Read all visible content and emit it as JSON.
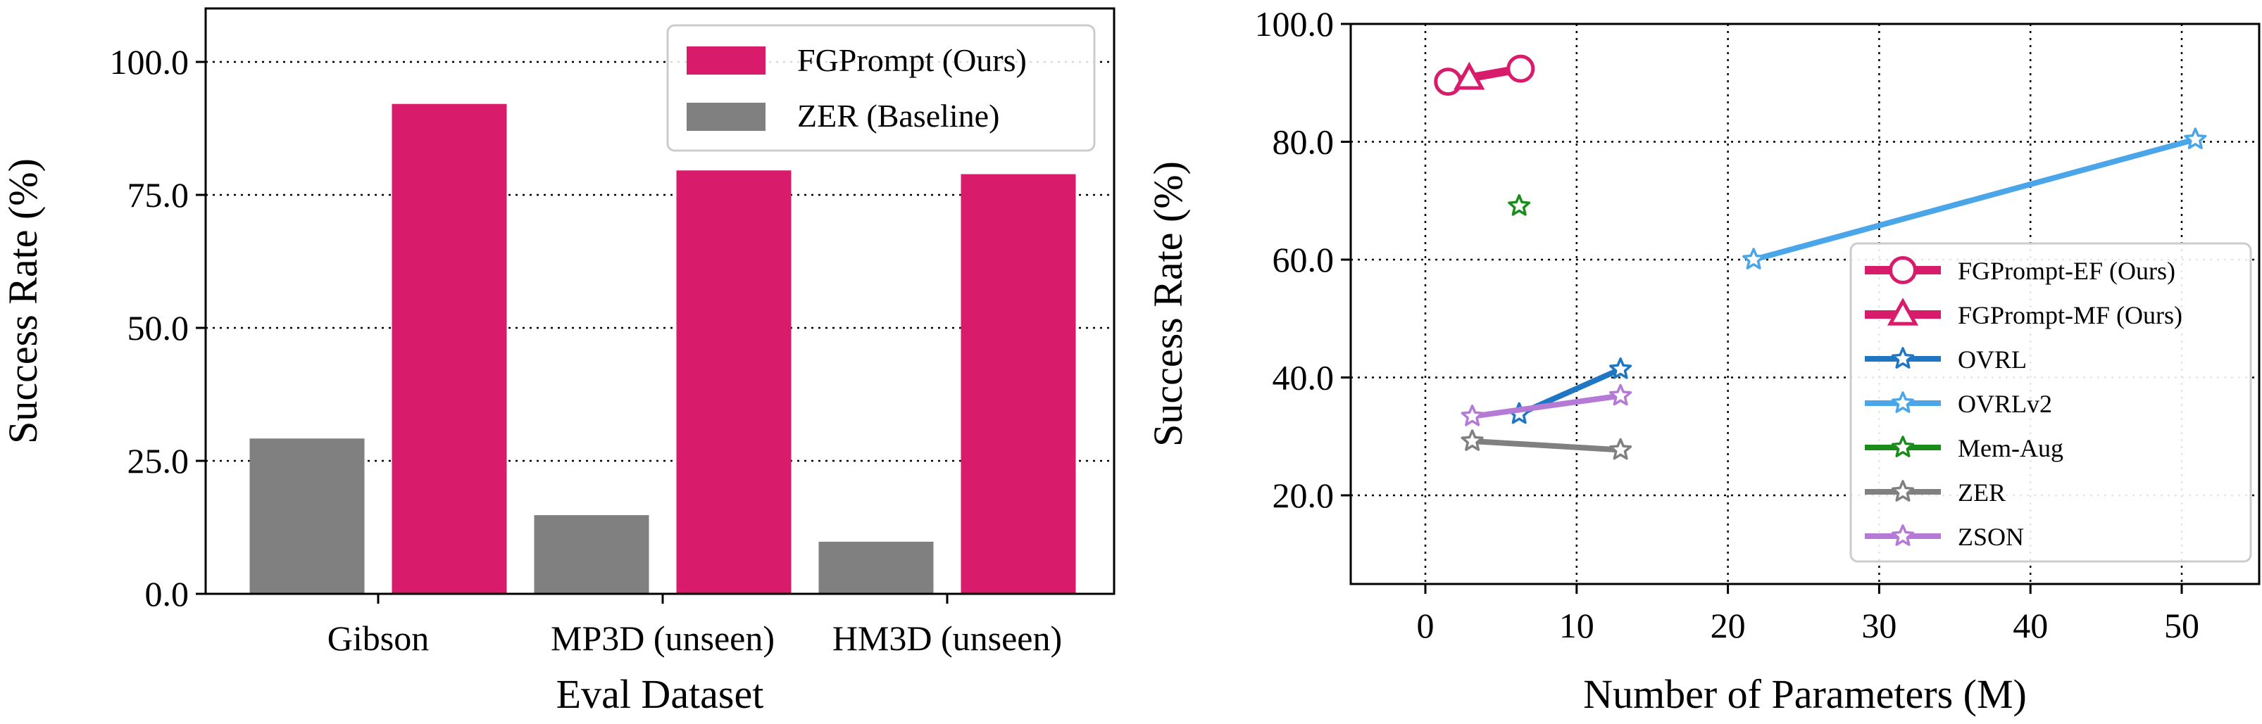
{
  "chart_data": [
    {
      "type": "bar",
      "categories": [
        "Gibson",
        "MP3D (unseen)",
        "HM3D (unseen)"
      ],
      "series": [
        {
          "name": "ZER (Baseline)",
          "values": [
            29.2,
            14.8,
            9.8
          ],
          "color": "#808080"
        },
        {
          "name": "FGPrompt (Ours)",
          "values": [
            92.1,
            79.6,
            78.9
          ],
          "color": "#d81b6b"
        }
      ],
      "xlabel": "Eval Dataset",
      "ylabel": "Success Rate (%)",
      "ylim": [
        0,
        100
      ],
      "yticks": [
        0.0,
        25.0,
        50.0,
        75.0,
        100.0
      ],
      "ytick_labels": [
        "0.0",
        "25.0",
        "50.0",
        "75.0",
        "100.0"
      ],
      "grid": "y-dotted",
      "legend": "top-right"
    },
    {
      "type": "line",
      "xlabel": "Number of Parameters (M)",
      "ylabel": "Success Rate (%)",
      "xlim": [
        -5,
        55
      ],
      "ylim": [
        5,
        100
      ],
      "xticks": [
        0,
        10,
        20,
        30,
        40,
        50
      ],
      "xtick_labels": [
        "0",
        "10",
        "20",
        "30",
        "40",
        "50"
      ],
      "yticks": [
        20,
        40,
        60,
        80,
        100
      ],
      "ytick_labels": [
        "20.0",
        "40.0",
        "60.0",
        "80.0",
        "100.0"
      ],
      "grid": "dotted",
      "legend": "lower-right",
      "series": [
        {
          "name": "FGPrompt-EF (Ours)",
          "marker": "circle",
          "color": "#d81b6b",
          "width": "thick",
          "points": [
            [
              1.5,
              90.2
            ],
            [
              6.3,
              92.4
            ]
          ]
        },
        {
          "name": "FGPrompt-MF (Ours)",
          "marker": "triangle",
          "color": "#d81b6b",
          "width": "thick",
          "points": [
            [
              2.9,
              90.7
            ],
            [
              2.9,
              90.7
            ]
          ]
        },
        {
          "name": "OVRL",
          "marker": "star",
          "color": "#1f77c4",
          "width": "normal",
          "points": [
            [
              6.2,
              33.8
            ],
            [
              12.9,
              41.4
            ]
          ]
        },
        {
          "name": "OVRLv2",
          "marker": "star",
          "color": "#4aa6e8",
          "width": "normal",
          "points": [
            [
              21.7,
              60.0
            ],
            [
              50.9,
              80.4
            ]
          ]
        },
        {
          "name": "Mem-Aug",
          "marker": "star",
          "color": "#1a8c1a",
          "width": "normal",
          "points": [
            [
              6.2,
              69.1
            ]
          ]
        },
        {
          "name": "ZER",
          "marker": "star",
          "color": "#808080",
          "width": "normal",
          "points": [
            [
              3.1,
              29.2
            ],
            [
              12.9,
              27.7
            ]
          ]
        },
        {
          "name": "ZSON",
          "marker": "star",
          "color": "#b57ad6",
          "width": "normal",
          "points": [
            [
              3.1,
              33.4
            ],
            [
              12.9,
              36.9
            ]
          ]
        }
      ]
    }
  ]
}
